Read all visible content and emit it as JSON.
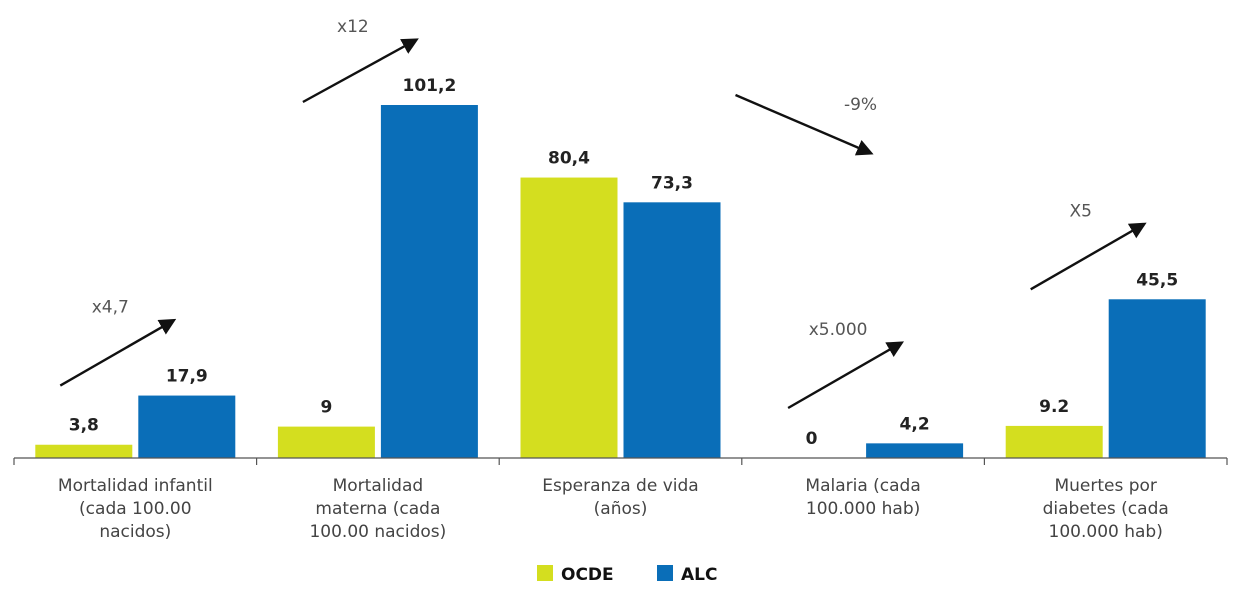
{
  "chart_data": {
    "type": "bar",
    "title": "",
    "xlabel": "",
    "ylabel": "",
    "categories": [
      [
        "Mortalidad infantil",
        "(cada 100.00",
        "nacidos)"
      ],
      [
        "Mortalidad",
        "materna (cada",
        "100.00 nacidos)"
      ],
      [
        "Esperanza de vida",
        "(años)"
      ],
      [
        "Malaria (cada",
        "100.000 hab)"
      ],
      [
        "Muertes por",
        "diabetes (cada",
        "100.000 hab)"
      ]
    ],
    "series": [
      {
        "name": "OCDE",
        "color": "#d4de1f",
        "values": [
          3.8,
          9,
          80.4,
          0,
          9.2
        ],
        "labels": [
          "3,8",
          "9",
          "80,4",
          "0",
          "9.2"
        ]
      },
      {
        "name": "ALC",
        "color": "#0a6eb8",
        "values": [
          17.9,
          101.2,
          73.3,
          4.2,
          45.5
        ],
        "labels": [
          "17,9",
          "101,2",
          "73,3",
          "4,2",
          "45,5"
        ]
      }
    ],
    "annotations": [
      {
        "text": "x4,7",
        "direction": "up"
      },
      {
        "text": "x12",
        "direction": "up"
      },
      {
        "text": "-9%",
        "direction": "down"
      },
      {
        "text": "x5.000",
        "direction": "up"
      },
      {
        "text": "X5",
        "direction": "up"
      }
    ],
    "legend": "bottom-center",
    "grid": false
  }
}
